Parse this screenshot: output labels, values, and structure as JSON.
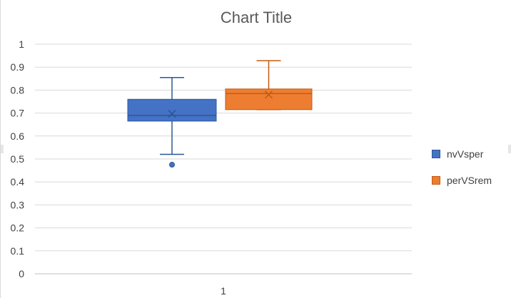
{
  "chart_data": {
    "type": "box",
    "title": "Chart Title",
    "categories": [
      "1"
    ],
    "ylim": [
      0,
      1
    ],
    "yticks": [
      0,
      0.1,
      0.2,
      0.3,
      0.4,
      0.5,
      0.6,
      0.7,
      0.8,
      0.9,
      1
    ],
    "ytick_labels": [
      "0",
      "0.1",
      "0.2",
      "0.3",
      "0.4",
      "0.5",
      "0.6",
      "0.7",
      "0.8",
      "0.9",
      "1"
    ],
    "xtick_labels": [
      "1"
    ],
    "grid": true,
    "legend_position": "right",
    "series": [
      {
        "name": "nvVsper",
        "color": "#4472c4",
        "border_color": "#2f5597",
        "min": 0.52,
        "q1": 0.665,
        "median": 0.69,
        "q3": 0.76,
        "max": 0.855,
        "mean": 0.697,
        "outliers": [
          0.475
        ]
      },
      {
        "name": "perVSrem",
        "color": "#ed7d31",
        "border_color": "#c55a11",
        "min": 0.715,
        "q1": 0.715,
        "median": 0.785,
        "q3": 0.805,
        "max": 0.928,
        "mean": 0.78,
        "outliers": []
      }
    ]
  }
}
